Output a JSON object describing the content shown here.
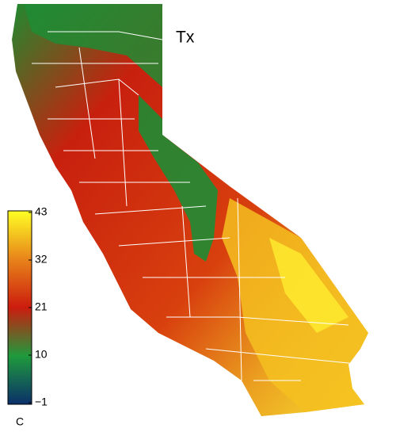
{
  "map": {
    "title": "Tx",
    "colorbar": {
      "lim": [
        -1,
        43
      ],
      "ticks": [
        {
          "value": -1,
          "label": "−1"
        },
        10,
        21,
        32,
        43
      ],
      "colors": [
        "#0b2f6a",
        "#1f9a3c",
        "#cc1c0e",
        "#e8841a",
        "#ffff24"
      ],
      "unit": "C"
    }
  }
}
